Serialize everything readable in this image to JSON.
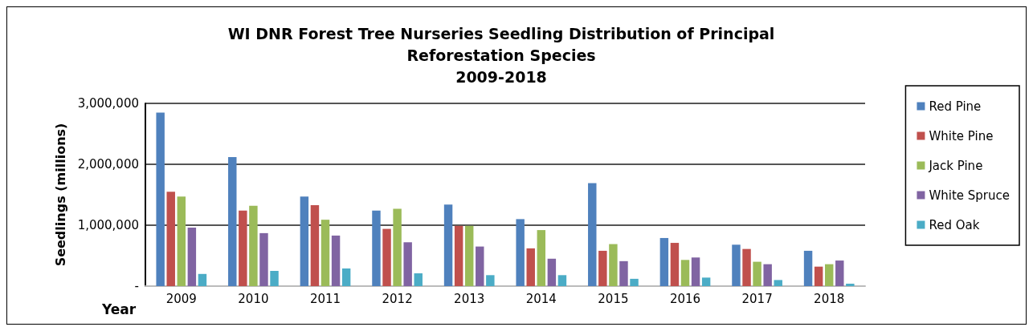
{
  "chart_data": {
    "type": "bar",
    "title": "WI DNR Forest Tree Nurseries Seedling Distribution of Principal\nReforestation Species\n2009-2018",
    "xlabel": "Year",
    "ylabel": "Seedlings (millions)",
    "categories": [
      "2009",
      "2010",
      "2011",
      "2012",
      "2013",
      "2014",
      "2015",
      "2016",
      "2017",
      "2018"
    ],
    "series": [
      {
        "name": "Red Pine",
        "color": "#4f81bd",
        "values": [
          2850000,
          2120000,
          1470000,
          1240000,
          1340000,
          1100000,
          1690000,
          790000,
          680000,
          580000
        ]
      },
      {
        "name": "White Pine",
        "color": "#c0504d",
        "values": [
          1550000,
          1240000,
          1330000,
          940000,
          990000,
          620000,
          580000,
          710000,
          610000,
          320000
        ]
      },
      {
        "name": "Jack Pine",
        "color": "#9bbb59",
        "values": [
          1470000,
          1320000,
          1090000,
          1270000,
          990000,
          920000,
          690000,
          430000,
          400000,
          360000
        ]
      },
      {
        "name": "White Spruce",
        "color": "#8064a2",
        "values": [
          960000,
          870000,
          830000,
          720000,
          650000,
          450000,
          410000,
          470000,
          360000,
          420000
        ]
      },
      {
        "name": "Red Oak",
        "color": "#4bacc6",
        "values": [
          200000,
          250000,
          290000,
          210000,
          180000,
          180000,
          120000,
          140000,
          100000,
          40000
        ]
      }
    ],
    "ylim": [
      0,
      3000000
    ],
    "yticks": [
      {
        "value": 0,
        "label": "-"
      },
      {
        "value": 1000000,
        "label": "1,000,000"
      },
      {
        "value": 2000000,
        "label": "2,000,000"
      },
      {
        "value": 3000000,
        "label": "3,000,000"
      }
    ],
    "grid": "y",
    "legend": "right"
  }
}
